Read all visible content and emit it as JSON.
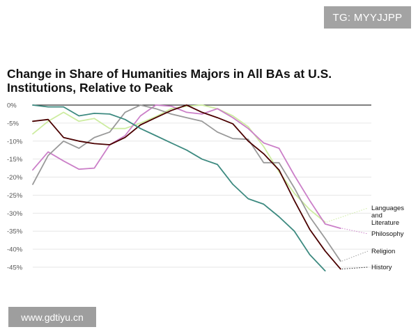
{
  "watermark_top": "TG: MYYJJPP",
  "watermark_bottom": "www.gdtiyu.cn",
  "chart_data": {
    "type": "line",
    "title": "Change in Share of Humanities Majors in All BAs at U.S. Institutions, Relative to Peak",
    "xlabel": "",
    "ylabel": "",
    "ylim": [
      -45,
      0
    ],
    "y_ticks": [
      {
        "value": 0,
        "label": "0%"
      },
      {
        "value": -5,
        "label": "-5%"
      },
      {
        "value": -10,
        "label": "-10%"
      },
      {
        "value": -15,
        "label": "-15%"
      },
      {
        "value": -20,
        "label": "-20%"
      },
      {
        "value": -25,
        "label": "-25%"
      },
      {
        "value": -30,
        "label": "-30%"
      },
      {
        "value": -35,
        "label": "-35%"
      },
      {
        "value": -40,
        "label": "-40%"
      },
      {
        "value": -45,
        "label": "-45%"
      }
    ],
    "grid": true,
    "x": [
      0,
      1,
      2,
      3,
      4,
      5,
      6,
      7,
      8,
      9,
      10,
      11,
      12,
      13,
      14,
      15,
      16,
      17,
      18,
      19,
      20
    ],
    "series": [
      {
        "name": "Languages and Literature",
        "color": "#cdeca0",
        "values": [
          -8,
          -4.5,
          -2,
          -4.5,
          -3.7,
          -6.5,
          -6.5,
          -5,
          -3.2,
          -1,
          -0.3,
          0,
          -1,
          -3,
          -6,
          -11.5,
          -18.5,
          -24.5,
          -29,
          -32.5,
          null
        ]
      },
      {
        "name": "Philosophy",
        "color": "#cb7fc8",
        "values": [
          -18,
          -13,
          -15.5,
          -17.8,
          -17.5,
          -11,
          -8.5,
          -3,
          0,
          -0.3,
          -2,
          -2.5,
          -1,
          -3.5,
          -6.5,
          -10.5,
          -12,
          -19.5,
          -26.5,
          -33,
          -34.2
        ]
      },
      {
        "name": "Religion",
        "color": "#999999",
        "values": [
          -22,
          -14,
          -10,
          -12,
          -9,
          -7.5,
          -2,
          0,
          -1,
          -2.5,
          -3.5,
          -4.5,
          -7.5,
          -9.3,
          -9.5,
          -16,
          -16,
          -23,
          -31,
          -37,
          -43.3
        ]
      },
      {
        "name": "History",
        "color": "#4a0000",
        "values": [
          -4.5,
          -4,
          -9,
          -10,
          -10.7,
          -11,
          -9,
          -5.5,
          -3.5,
          -1.5,
          0,
          -2,
          -3.5,
          -5.2,
          -10,
          -13.5,
          -18,
          -26.5,
          -34.5,
          -40.5,
          -45.5
        ]
      },
      {
        "name": "",
        "color": "#3d8a80",
        "values": [
          0,
          -0.5,
          -0.5,
          -3,
          -2.3,
          -2.5,
          -4,
          -6.5,
          -8.5,
          -10.5,
          -12.5,
          -15,
          -16.5,
          -22,
          -26,
          -27.5,
          -31,
          -35,
          -41.5,
          -46,
          null
        ]
      }
    ],
    "legend_labels": [
      {
        "series": "Languages and Literature",
        "lines": [
          "Languages",
          "and",
          "Literature"
        ]
      },
      {
        "series": "Philosophy",
        "lines": [
          "Philosophy"
        ]
      },
      {
        "series": "Religion",
        "lines": [
          "Religion"
        ]
      },
      {
        "series": "History",
        "lines": [
          "History"
        ]
      }
    ]
  }
}
